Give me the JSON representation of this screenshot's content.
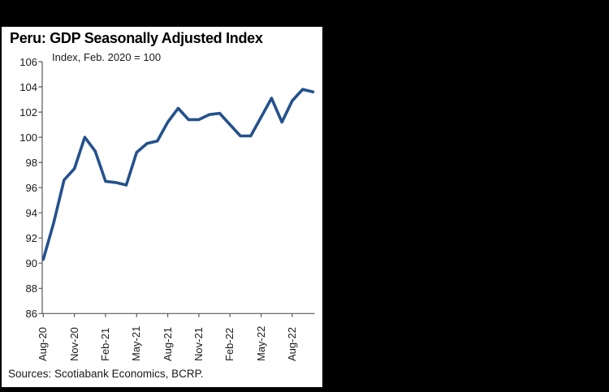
{
  "chart_data": {
    "type": "line",
    "title": "Peru: GDP Seasonally Adjusted Index",
    "subtitle": "Index, Feb. 2020 = 100",
    "source": "Sources: Scotiabank Economics, BCRP.",
    "series_name": "Peru GDP seasonally adjusted index",
    "categories": [
      "Aug-20",
      "Sep-20",
      "Oct-20",
      "Nov-20",
      "Dec-20",
      "Jan-21",
      "Feb-21",
      "Mar-21",
      "Apr-21",
      "May-21",
      "Jun-21",
      "Jul-21",
      "Aug-21",
      "Sep-21",
      "Oct-21",
      "Nov-21",
      "Dec-21",
      "Jan-22",
      "Feb-22",
      "Mar-22",
      "Apr-22",
      "May-22",
      "Jun-22",
      "Jul-22",
      "Aug-22",
      "Sep-22",
      "Oct-22"
    ],
    "values": [
      90.3,
      93.2,
      96.6,
      97.5,
      100.0,
      98.9,
      96.5,
      96.4,
      96.2,
      98.8,
      99.5,
      99.7,
      101.2,
      102.3,
      101.4,
      101.4,
      101.8,
      101.9,
      101.0,
      100.1,
      100.1,
      101.6,
      103.1,
      101.2,
      102.9,
      103.8,
      103.6
    ],
    "x_tick_labels": [
      "Aug-20",
      "Nov-20",
      "Feb-21",
      "May-21",
      "Aug-21",
      "Nov-21",
      "Feb-22",
      "May-22",
      "Aug-22"
    ],
    "ylim": [
      86,
      106
    ],
    "y_tick_step": 2,
    "y_tick_labels": [
      "86",
      "88",
      "90",
      "92",
      "94",
      "96",
      "98",
      "100",
      "102",
      "104",
      "106"
    ],
    "grid": "off",
    "legend": "none",
    "line_color": "#24518D",
    "axis_color": "#595959",
    "background_color": "#000000",
    "panel_color": "#ffffff"
  }
}
